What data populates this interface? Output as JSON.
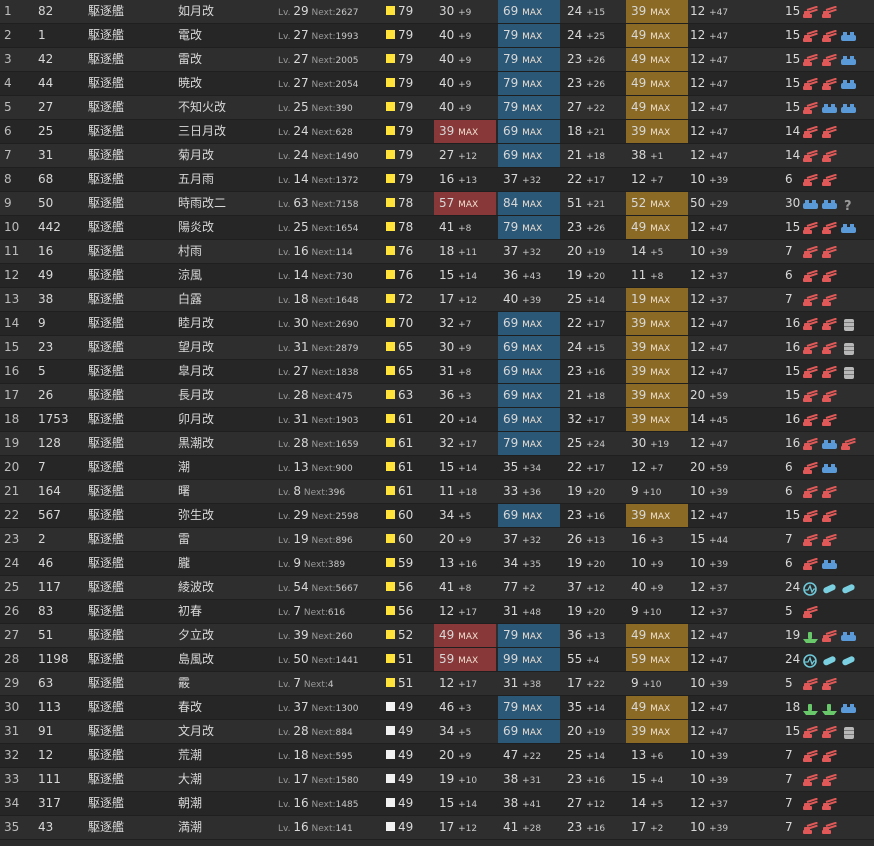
{
  "colors": {
    "cond_yellow": "#ffe23a",
    "cond_white": "#f2f2f2",
    "max_fp": "#883838",
    "max_tp": "#2c5878",
    "max_ar": "#8a6a24"
  },
  "rows": [
    {
      "i": "1",
      "id": "82",
      "type": "駆逐艦",
      "name": "如月改",
      "lv": "29",
      "next": "2627",
      "cond": "79",
      "cc": "yellow",
      "fp": [
        "30",
        "+9"
      ],
      "tp": [
        "69",
        "MAX"
      ],
      "aa": [
        "24",
        "+15"
      ],
      "ar": [
        "39",
        "MAX"
      ],
      "ev": [
        "12",
        "+47"
      ],
      "luck": "15",
      "eq": [
        "gun-red-icon",
        "gun-red-icon"
      ]
    },
    {
      "i": "2",
      "id": "1",
      "type": "駆逐艦",
      "name": "電改",
      "lv": "27",
      "next": "1993",
      "cond": "79",
      "cc": "yellow",
      "fp": [
        "40",
        "+9"
      ],
      "tp": [
        "79",
        "MAX"
      ],
      "aa": [
        "24",
        "+25"
      ],
      "ar": [
        "49",
        "MAX"
      ],
      "ev": [
        "12",
        "+47"
      ],
      "luck": "15",
      "eq": [
        "gun-red-icon",
        "gun-red-icon",
        "torpedo-blue-icon"
      ]
    },
    {
      "i": "3",
      "id": "42",
      "type": "駆逐艦",
      "name": "雷改",
      "lv": "27",
      "next": "2005",
      "cond": "79",
      "cc": "yellow",
      "fp": [
        "40",
        "+9"
      ],
      "tp": [
        "79",
        "MAX"
      ],
      "aa": [
        "23",
        "+26"
      ],
      "ar": [
        "49",
        "MAX"
      ],
      "ev": [
        "12",
        "+47"
      ],
      "luck": "15",
      "eq": [
        "gun-red-icon",
        "gun-red-icon",
        "torpedo-blue-icon"
      ]
    },
    {
      "i": "4",
      "id": "44",
      "type": "駆逐艦",
      "name": "暁改",
      "lv": "27",
      "next": "2054",
      "cond": "79",
      "cc": "yellow",
      "fp": [
        "40",
        "+9"
      ],
      "tp": [
        "79",
        "MAX"
      ],
      "aa": [
        "23",
        "+26"
      ],
      "ar": [
        "49",
        "MAX"
      ],
      "ev": [
        "12",
        "+47"
      ],
      "luck": "15",
      "eq": [
        "gun-red-icon",
        "gun-red-icon",
        "torpedo-blue-icon"
      ]
    },
    {
      "i": "5",
      "id": "27",
      "type": "駆逐艦",
      "name": "不知火改",
      "lv": "25",
      "next": "390",
      "cond": "79",
      "cc": "yellow",
      "fp": [
        "40",
        "+9"
      ],
      "tp": [
        "79",
        "MAX"
      ],
      "aa": [
        "27",
        "+22"
      ],
      "ar": [
        "49",
        "MAX"
      ],
      "ev": [
        "12",
        "+47"
      ],
      "luck": "15",
      "eq": [
        "gun-red-icon",
        "torpedo-blue-icon",
        "torpedo-blue-icon"
      ]
    },
    {
      "i": "6",
      "id": "25",
      "type": "駆逐艦",
      "name": "三日月改",
      "lv": "24",
      "next": "628",
      "cond": "79",
      "cc": "yellow",
      "fp": [
        "39",
        "MAX"
      ],
      "tp": [
        "69",
        "MAX"
      ],
      "aa": [
        "18",
        "+21"
      ],
      "ar": [
        "39",
        "MAX"
      ],
      "ev": [
        "12",
        "+47"
      ],
      "luck": "14",
      "eq": [
        "gun-red-icon",
        "gun-red-icon"
      ]
    },
    {
      "i": "7",
      "id": "31",
      "type": "駆逐艦",
      "name": "菊月改",
      "lv": "24",
      "next": "1490",
      "cond": "79",
      "cc": "yellow",
      "fp": [
        "27",
        "+12"
      ],
      "tp": [
        "69",
        "MAX"
      ],
      "aa": [
        "21",
        "+18"
      ],
      "ar": [
        "38",
        "+1"
      ],
      "ev": [
        "12",
        "+47"
      ],
      "luck": "14",
      "eq": [
        "gun-red-icon",
        "gun-red-icon"
      ]
    },
    {
      "i": "8",
      "id": "68",
      "type": "駆逐艦",
      "name": "五月雨",
      "lv": "14",
      "next": "1372",
      "cond": "79",
      "cc": "yellow",
      "fp": [
        "16",
        "+13"
      ],
      "tp": [
        "37",
        "+32"
      ],
      "aa": [
        "22",
        "+17"
      ],
      "ar": [
        "12",
        "+7"
      ],
      "ev": [
        "10",
        "+39"
      ],
      "luck": "6",
      "eq": [
        "gun-red-icon",
        "gun-red-icon"
      ]
    },
    {
      "i": "9",
      "id": "50",
      "type": "駆逐艦",
      "name": "時雨改二",
      "lv": "63",
      "next": "7158",
      "cond": "78",
      "cc": "yellow",
      "fp": [
        "57",
        "MAX"
      ],
      "tp": [
        "84",
        "MAX"
      ],
      "aa": [
        "51",
        "+21"
      ],
      "ar": [
        "52",
        "MAX"
      ],
      "ev": [
        "50",
        "+29"
      ],
      "luck": "30",
      "eq": [
        "torpedo-blue-icon",
        "torpedo-blue-icon",
        "unknown-icon"
      ]
    },
    {
      "i": "10",
      "id": "442",
      "type": "駆逐艦",
      "name": "陽炎改",
      "lv": "25",
      "next": "1654",
      "cond": "78",
      "cc": "yellow",
      "fp": [
        "41",
        "+8"
      ],
      "tp": [
        "79",
        "MAX"
      ],
      "aa": [
        "23",
        "+26"
      ],
      "ar": [
        "49",
        "MAX"
      ],
      "ev": [
        "12",
        "+47"
      ],
      "luck": "15",
      "eq": [
        "gun-red-icon",
        "gun-red-icon",
        "torpedo-blue-icon"
      ]
    },
    {
      "i": "11",
      "id": "16",
      "type": "駆逐艦",
      "name": "村雨",
      "lv": "16",
      "next": "114",
      "cond": "76",
      "cc": "yellow",
      "fp": [
        "18",
        "+11"
      ],
      "tp": [
        "37",
        "+32"
      ],
      "aa": [
        "20",
        "+19"
      ],
      "ar": [
        "14",
        "+5"
      ],
      "ev": [
        "10",
        "+39"
      ],
      "luck": "7",
      "eq": [
        "gun-red-icon",
        "gun-red-icon"
      ]
    },
    {
      "i": "12",
      "id": "49",
      "type": "駆逐艦",
      "name": "涼風",
      "lv": "14",
      "next": "730",
      "cond": "76",
      "cc": "yellow",
      "fp": [
        "15",
        "+14"
      ],
      "tp": [
        "36",
        "+43"
      ],
      "aa": [
        "19",
        "+20"
      ],
      "ar": [
        "11",
        "+8"
      ],
      "ev": [
        "12",
        "+37"
      ],
      "luck": "6",
      "eq": [
        "gun-red-icon",
        "gun-red-icon"
      ]
    },
    {
      "i": "13",
      "id": "38",
      "type": "駆逐艦",
      "name": "白露",
      "lv": "18",
      "next": "1648",
      "cond": "72",
      "cc": "yellow",
      "fp": [
        "17",
        "+12"
      ],
      "tp": [
        "40",
        "+39"
      ],
      "aa": [
        "25",
        "+14"
      ],
      "ar": [
        "19",
        "MAX"
      ],
      "ev": [
        "12",
        "+37"
      ],
      "luck": "7",
      "eq": [
        "gun-red-icon",
        "gun-red-icon"
      ]
    },
    {
      "i": "14",
      "id": "9",
      "type": "駆逐艦",
      "name": "睦月改",
      "lv": "30",
      "next": "2690",
      "cond": "70",
      "cc": "yellow",
      "fp": [
        "32",
        "+7"
      ],
      "tp": [
        "69",
        "MAX"
      ],
      "aa": [
        "22",
        "+17"
      ],
      "ar": [
        "39",
        "MAX"
      ],
      "ev": [
        "12",
        "+47"
      ],
      "luck": "16",
      "eq": [
        "gun-red-icon",
        "gun-red-icon",
        "drum-icon"
      ]
    },
    {
      "i": "15",
      "id": "23",
      "type": "駆逐艦",
      "name": "望月改",
      "lv": "31",
      "next": "2879",
      "cond": "65",
      "cc": "yellow",
      "fp": [
        "30",
        "+9"
      ],
      "tp": [
        "69",
        "MAX"
      ],
      "aa": [
        "24",
        "+15"
      ],
      "ar": [
        "39",
        "MAX"
      ],
      "ev": [
        "12",
        "+47"
      ],
      "luck": "16",
      "eq": [
        "gun-red-icon",
        "gun-red-icon",
        "drum-icon"
      ]
    },
    {
      "i": "16",
      "id": "5",
      "type": "駆逐艦",
      "name": "皐月改",
      "lv": "27",
      "next": "1838",
      "cond": "65",
      "cc": "yellow",
      "fp": [
        "31",
        "+8"
      ],
      "tp": [
        "69",
        "MAX"
      ],
      "aa": [
        "23",
        "+16"
      ],
      "ar": [
        "39",
        "MAX"
      ],
      "ev": [
        "12",
        "+47"
      ],
      "luck": "15",
      "eq": [
        "gun-red-icon",
        "gun-red-icon",
        "drum-icon"
      ]
    },
    {
      "i": "17",
      "id": "26",
      "type": "駆逐艦",
      "name": "長月改",
      "lv": "28",
      "next": "475",
      "cond": "63",
      "cc": "yellow",
      "fp": [
        "36",
        "+3"
      ],
      "tp": [
        "69",
        "MAX"
      ],
      "aa": [
        "21",
        "+18"
      ],
      "ar": [
        "39",
        "MAX"
      ],
      "ev": [
        "20",
        "+59"
      ],
      "luck": "15",
      "eq": [
        "gun-red-icon",
        "gun-red-icon"
      ]
    },
    {
      "i": "18",
      "id": "1753",
      "type": "駆逐艦",
      "name": "卯月改",
      "lv": "31",
      "next": "1903",
      "cond": "61",
      "cc": "yellow",
      "fp": [
        "20",
        "+14"
      ],
      "tp": [
        "69",
        "MAX"
      ],
      "aa": [
        "32",
        "+17"
      ],
      "ar": [
        "39",
        "MAX"
      ],
      "ev": [
        "14",
        "+45"
      ],
      "luck": "16",
      "eq": [
        "gun-red-icon",
        "gun-red-icon"
      ]
    },
    {
      "i": "19",
      "id": "128",
      "type": "駆逐艦",
      "name": "黒潮改",
      "lv": "28",
      "next": "1659",
      "cond": "61",
      "cc": "yellow",
      "fp": [
        "32",
        "+17"
      ],
      "tp": [
        "79",
        "MAX"
      ],
      "aa": [
        "25",
        "+24"
      ],
      "ar": [
        "30",
        "+19"
      ],
      "ev": [
        "12",
        "+47"
      ],
      "luck": "16",
      "eq": [
        "gun-red-icon",
        "torpedo-blue-icon",
        "gun-red-icon"
      ]
    },
    {
      "i": "20",
      "id": "7",
      "type": "駆逐艦",
      "name": "潮",
      "lv": "13",
      "next": "900",
      "cond": "61",
      "cc": "yellow",
      "fp": [
        "15",
        "+14"
      ],
      "tp": [
        "35",
        "+34"
      ],
      "aa": [
        "22",
        "+17"
      ],
      "ar": [
        "12",
        "+7"
      ],
      "ev": [
        "20",
        "+59"
      ],
      "luck": "6",
      "eq": [
        "gun-red-icon",
        "torpedo-blue-icon"
      ]
    },
    {
      "i": "21",
      "id": "164",
      "type": "駆逐艦",
      "name": "曙",
      "lv": "8",
      "next": "396",
      "cond": "61",
      "cc": "yellow",
      "fp": [
        "11",
        "+18"
      ],
      "tp": [
        "33",
        "+36"
      ],
      "aa": [
        "19",
        "+20"
      ],
      "ar": [
        "9",
        "+10"
      ],
      "ev": [
        "10",
        "+39"
      ],
      "luck": "6",
      "eq": [
        "gun-red-icon",
        "gun-red-icon"
      ]
    },
    {
      "i": "22",
      "id": "567",
      "type": "駆逐艦",
      "name": "弥生改",
      "lv": "29",
      "next": "2598",
      "cond": "60",
      "cc": "yellow",
      "fp": [
        "34",
        "+5"
      ],
      "tp": [
        "69",
        "MAX"
      ],
      "aa": [
        "23",
        "+16"
      ],
      "ar": [
        "39",
        "MAX"
      ],
      "ev": [
        "12",
        "+47"
      ],
      "luck": "15",
      "eq": [
        "gun-red-icon",
        "gun-red-icon"
      ]
    },
    {
      "i": "23",
      "id": "2",
      "type": "駆逐艦",
      "name": "雷",
      "lv": "19",
      "next": "896",
      "cond": "60",
      "cc": "yellow",
      "fp": [
        "20",
        "+9"
      ],
      "tp": [
        "37",
        "+32"
      ],
      "aa": [
        "26",
        "+13"
      ],
      "ar": [
        "16",
        "+3"
      ],
      "ev": [
        "15",
        "+44"
      ],
      "luck": "7",
      "eq": [
        "gun-red-icon",
        "gun-red-icon"
      ]
    },
    {
      "i": "24",
      "id": "46",
      "type": "駆逐艦",
      "name": "朧",
      "lv": "9",
      "next": "389",
      "cond": "59",
      "cc": "yellow",
      "fp": [
        "13",
        "+16"
      ],
      "tp": [
        "34",
        "+35"
      ],
      "aa": [
        "19",
        "+20"
      ],
      "ar": [
        "10",
        "+9"
      ],
      "ev": [
        "10",
        "+39"
      ],
      "luck": "6",
      "eq": [
        "gun-red-icon",
        "torpedo-blue-icon"
      ]
    },
    {
      "i": "25",
      "id": "117",
      "type": "駆逐艦",
      "name": "綾波改",
      "lv": "54",
      "next": "5667",
      "cond": "56",
      "cc": "yellow",
      "fp": [
        "41",
        "+8"
      ],
      "tp": [
        "77",
        "+2"
      ],
      "aa": [
        "37",
        "+12"
      ],
      "ar": [
        "40",
        "+9"
      ],
      "ev": [
        "12",
        "+37"
      ],
      "luck": "24",
      "eq": [
        "sonar-icon",
        "depth-charge-icon",
        "depth-charge-icon"
      ]
    },
    {
      "i": "26",
      "id": "83",
      "type": "駆逐艦",
      "name": "初春",
      "lv": "7",
      "next": "616",
      "cond": "56",
      "cc": "yellow",
      "fp": [
        "12",
        "+17"
      ],
      "tp": [
        "31",
        "+48"
      ],
      "aa": [
        "19",
        "+20"
      ],
      "ar": [
        "9",
        "+10"
      ],
      "ev": [
        "12",
        "+37"
      ],
      "luck": "5",
      "eq": [
        "gun-red-icon"
      ]
    },
    {
      "i": "27",
      "id": "51",
      "type": "駆逐艦",
      "name": "夕立改",
      "lv": "39",
      "next": "260",
      "cond": "52",
      "cc": "yellow",
      "fp": [
        "49",
        "MAX"
      ],
      "tp": [
        "79",
        "MAX"
      ],
      "aa": [
        "36",
        "+13"
      ],
      "ar": [
        "49",
        "MAX"
      ],
      "ev": [
        "12",
        "+47"
      ],
      "luck": "19",
      "eq": [
        "boat-green-icon",
        "gun-red-icon",
        "torpedo-blue-icon"
      ]
    },
    {
      "i": "28",
      "id": "1198",
      "type": "駆逐艦",
      "name": "島風改",
      "lv": "50",
      "next": "1441",
      "cond": "51",
      "cc": "yellow",
      "fp": [
        "59",
        "MAX"
      ],
      "tp": [
        "99",
        "MAX"
      ],
      "aa": [
        "55",
        "+4"
      ],
      "ar": [
        "59",
        "MAX"
      ],
      "ev": [
        "12",
        "+47"
      ],
      "luck": "24",
      "eq": [
        "sonar-icon",
        "depth-charge-icon",
        "depth-charge-icon"
      ]
    },
    {
      "i": "29",
      "id": "63",
      "type": "駆逐艦",
      "name": "霰",
      "lv": "7",
      "next": "4",
      "cond": "51",
      "cc": "yellow",
      "fp": [
        "12",
        "+17"
      ],
      "tp": [
        "31",
        "+38"
      ],
      "aa": [
        "17",
        "+22"
      ],
      "ar": [
        "9",
        "+10"
      ],
      "ev": [
        "10",
        "+39"
      ],
      "luck": "5",
      "eq": [
        "gun-red-icon",
        "gun-red-icon"
      ]
    },
    {
      "i": "30",
      "id": "113",
      "type": "駆逐艦",
      "name": "春改",
      "lv": "37",
      "next": "1300",
      "cond": "49",
      "cc": "white",
      "fp": [
        "46",
        "+3"
      ],
      "tp": [
        "79",
        "MAX"
      ],
      "aa": [
        "35",
        "+14"
      ],
      "ar": [
        "49",
        "MAX"
      ],
      "ev": [
        "12",
        "+47"
      ],
      "luck": "18",
      "eq": [
        "boat-green-icon",
        "boat-green-icon",
        "torpedo-blue-icon"
      ]
    },
    {
      "i": "31",
      "id": "91",
      "type": "駆逐艦",
      "name": "文月改",
      "lv": "28",
      "next": "884",
      "cond": "49",
      "cc": "white",
      "fp": [
        "34",
        "+5"
      ],
      "tp": [
        "69",
        "MAX"
      ],
      "aa": [
        "20",
        "+19"
      ],
      "ar": [
        "39",
        "MAX"
      ],
      "ev": [
        "12",
        "+47"
      ],
      "luck": "15",
      "eq": [
        "gun-red-icon",
        "gun-red-icon",
        "drum-icon"
      ]
    },
    {
      "i": "32",
      "id": "12",
      "type": "駆逐艦",
      "name": "荒潮",
      "lv": "18",
      "next": "595",
      "cond": "49",
      "cc": "white",
      "fp": [
        "20",
        "+9"
      ],
      "tp": [
        "47",
        "+22"
      ],
      "aa": [
        "25",
        "+14"
      ],
      "ar": [
        "13",
        "+6"
      ],
      "ev": [
        "10",
        "+39"
      ],
      "luck": "7",
      "eq": [
        "gun-red-icon",
        "gun-red-icon"
      ]
    },
    {
      "i": "33",
      "id": "111",
      "type": "駆逐艦",
      "name": "大潮",
      "lv": "17",
      "next": "1580",
      "cond": "49",
      "cc": "white",
      "fp": [
        "19",
        "+10"
      ],
      "tp": [
        "38",
        "+31"
      ],
      "aa": [
        "23",
        "+16"
      ],
      "ar": [
        "15",
        "+4"
      ],
      "ev": [
        "10",
        "+39"
      ],
      "luck": "7",
      "eq": [
        "gun-red-icon",
        "gun-red-icon"
      ]
    },
    {
      "i": "34",
      "id": "317",
      "type": "駆逐艦",
      "name": "朝潮",
      "lv": "16",
      "next": "1485",
      "cond": "49",
      "cc": "white",
      "fp": [
        "15",
        "+14"
      ],
      "tp": [
        "38",
        "+41"
      ],
      "aa": [
        "27",
        "+12"
      ],
      "ar": [
        "14",
        "+5"
      ],
      "ev": [
        "12",
        "+37"
      ],
      "luck": "7",
      "eq": [
        "gun-red-icon",
        "gun-red-icon"
      ]
    },
    {
      "i": "35",
      "id": "43",
      "type": "駆逐艦",
      "name": "満潮",
      "lv": "16",
      "next": "141",
      "cond": "49",
      "cc": "white",
      "fp": [
        "17",
        "+12"
      ],
      "tp": [
        "41",
        "+28"
      ],
      "aa": [
        "23",
        "+16"
      ],
      "ar": [
        "17",
        "+2"
      ],
      "ev": [
        "10",
        "+39"
      ],
      "luck": "7",
      "eq": [
        "gun-red-icon",
        "gun-red-icon"
      ]
    }
  ]
}
